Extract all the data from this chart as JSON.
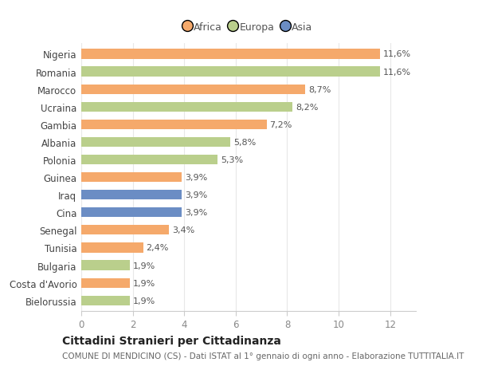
{
  "categories": [
    "Nigeria",
    "Romania",
    "Marocco",
    "Ucraina",
    "Gambia",
    "Albania",
    "Polonia",
    "Guinea",
    "Iraq",
    "Cina",
    "Senegal",
    "Tunisia",
    "Bulgaria",
    "Costa d'Avorio",
    "Bielorussia"
  ],
  "values": [
    11.6,
    11.6,
    8.7,
    8.2,
    7.2,
    5.8,
    5.3,
    3.9,
    3.9,
    3.9,
    3.4,
    2.4,
    1.9,
    1.9,
    1.9
  ],
  "labels": [
    "11,6%",
    "11,6%",
    "8,7%",
    "8,2%",
    "7,2%",
    "5,8%",
    "5,3%",
    "3,9%",
    "3,9%",
    "3,9%",
    "3,4%",
    "2,4%",
    "1,9%",
    "1,9%",
    "1,9%"
  ],
  "continents": [
    "Africa",
    "Europa",
    "Africa",
    "Europa",
    "Africa",
    "Europa",
    "Europa",
    "Africa",
    "Asia",
    "Asia",
    "Africa",
    "Africa",
    "Europa",
    "Africa",
    "Europa"
  ],
  "colors": {
    "Africa": "#F5A96B",
    "Europa": "#BACF8C",
    "Asia": "#6B8DC4"
  },
  "xlim": [
    0,
    13
  ],
  "xticks": [
    0,
    2,
    4,
    6,
    8,
    10,
    12
  ],
  "title": "Cittadini Stranieri per Cittadinanza",
  "subtitle": "COMUNE DI MENDICINO (CS) - Dati ISTAT al 1° gennaio di ogni anno - Elaborazione TUTTITALIA.IT",
  "background_color": "#ffffff",
  "bar_height": 0.55,
  "label_fontsize": 8,
  "ytick_fontsize": 8.5,
  "xtick_fontsize": 8.5,
  "title_fontsize": 10,
  "subtitle_fontsize": 7.5
}
